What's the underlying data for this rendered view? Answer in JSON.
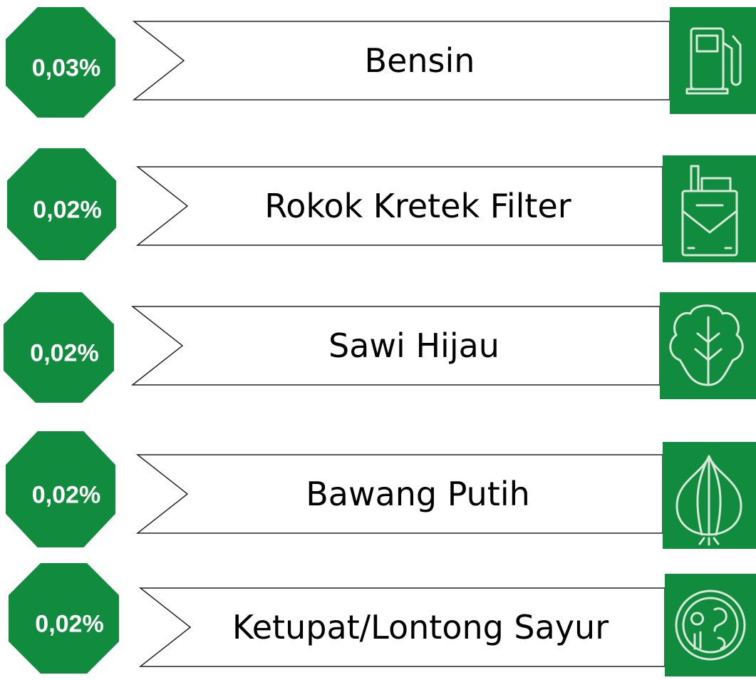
{
  "items": [
    {
      "value": "0,03%",
      "label": "Bensin"
    },
    {
      "value": "0,02%",
      "label": "Rokok Kretek Filter"
    },
    {
      "value": "0,02%",
      "label": "Sawi Hijau"
    },
    {
      "value": "0,02%",
      "label": "Bawang Putih"
    },
    {
      "value": "0,02%",
      "label": "Ketupat/Lontong Sayur"
    }
  ]
}
